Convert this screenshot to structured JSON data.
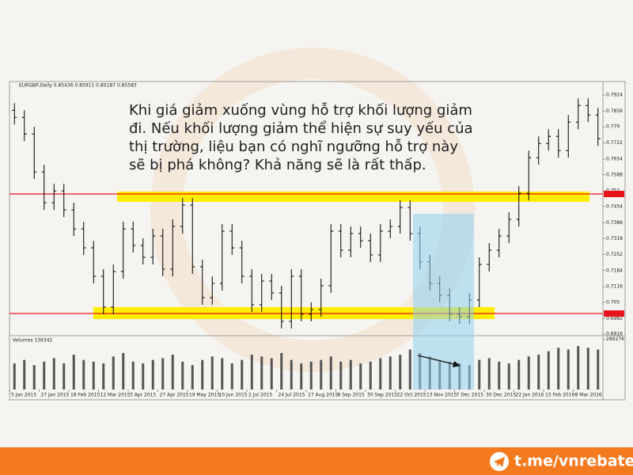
{
  "chart_data": {
    "type": "ohlc",
    "header": "EURGBP,Daily  0.85436 0.85911 0.85187 0.85583",
    "annotation": [
      "Khi giá giảm xuống vùng hỗ trợ khối lượng giảm",
      "đi. Nếu khối lượng giảm thể hiện sự suy yếu của",
      "thị trường, liệu bạn có nghĩ ngưỡng hỗ trợ này",
      "sẽ bị phá không? Khả năng sẽ là rất thấp."
    ],
    "categories": [
      "5 Jan 2015",
      null,
      null,
      "27 Jan 2015",
      null,
      null,
      "18 Feb 2015",
      null,
      null,
      "12 Mar 2015",
      null,
      null,
      "3 Apr 2015",
      null,
      null,
      "27 Apr 2015",
      null,
      null,
      "19 May 2015",
      null,
      null,
      "10 Jun 2015",
      null,
      null,
      "2 Jul 2015",
      null,
      null,
      "24 Jul 2015",
      null,
      null,
      "17 Aug 2015",
      null,
      null,
      "8 Sep 2015",
      null,
      null,
      "30 Sep 2015",
      null,
      null,
      "22 Oct 2015",
      null,
      null,
      "13 Nov 2015",
      null,
      null,
      "7 Dec 2015",
      null,
      null,
      "30 Dec 2015",
      null,
      null,
      "22 Jan 2016",
      null,
      null,
      "15 Feb 2016",
      null,
      null,
      "8 Mar 2016",
      null,
      null
    ],
    "open": [
      0.786,
      0.783,
      0.776,
      0.76,
      0.747,
      0.752,
      0.744,
      0.736,
      0.728,
      0.716,
      0.703,
      0.718,
      0.736,
      0.729,
      0.724,
      0.733,
      0.719,
      0.737,
      0.746,
      0.72,
      0.707,
      0.713,
      0.735,
      0.728,
      0.716,
      0.704,
      0.714,
      0.709,
      0.697,
      0.716,
      0.7,
      0.702,
      0.712,
      0.735,
      0.727,
      0.734,
      0.731,
      0.725,
      0.735,
      0.737,
      0.745,
      0.734,
      0.722,
      0.713,
      0.708,
      0.7,
      0.699,
      0.706,
      0.721,
      0.727,
      0.733,
      0.74,
      0.751,
      0.766,
      0.772,
      0.775,
      0.769,
      0.781,
      0.788,
      0.784
    ],
    "high": [
      0.789,
      0.786,
      0.779,
      0.763,
      0.755,
      0.755,
      0.747,
      0.739,
      0.731,
      0.719,
      0.721,
      0.739,
      0.739,
      0.732,
      0.736,
      0.736,
      0.74,
      0.749,
      0.749,
      0.723,
      0.716,
      0.738,
      0.738,
      0.731,
      0.719,
      0.717,
      0.717,
      0.712,
      0.719,
      0.719,
      0.705,
      0.715,
      0.738,
      0.738,
      0.737,
      0.737,
      0.734,
      0.738,
      0.74,
      0.748,
      0.748,
      0.737,
      0.725,
      0.716,
      0.711,
      0.703,
      0.709,
      0.724,
      0.73,
      0.736,
      0.743,
      0.754,
      0.769,
      0.775,
      0.778,
      0.778,
      0.784,
      0.791,
      0.791,
      0.787
    ],
    "low": [
      0.78,
      0.773,
      0.757,
      0.744,
      0.744,
      0.741,
      0.733,
      0.725,
      0.713,
      0.7,
      0.7,
      0.715,
      0.726,
      0.721,
      0.721,
      0.716,
      0.716,
      0.734,
      0.717,
      0.704,
      0.704,
      0.71,
      0.725,
      0.713,
      0.701,
      0.701,
      0.706,
      0.694,
      0.694,
      0.697,
      0.697,
      0.699,
      0.709,
      0.724,
      0.724,
      0.728,
      0.722,
      0.722,
      0.732,
      0.734,
      0.731,
      0.719,
      0.71,
      0.705,
      0.697,
      0.696,
      0.696,
      0.703,
      0.718,
      0.724,
      0.73,
      0.737,
      0.748,
      0.763,
      0.769,
      0.766,
      0.766,
      0.778,
      0.781,
      0.771
    ],
    "close": [
      0.783,
      0.776,
      0.76,
      0.747,
      0.752,
      0.744,
      0.736,
      0.728,
      0.716,
      0.703,
      0.718,
      0.736,
      0.729,
      0.724,
      0.733,
      0.719,
      0.737,
      0.746,
      0.72,
      0.707,
      0.713,
      0.735,
      0.728,
      0.716,
      0.704,
      0.714,
      0.709,
      0.697,
      0.716,
      0.7,
      0.702,
      0.712,
      0.735,
      0.727,
      0.734,
      0.731,
      0.725,
      0.735,
      0.737,
      0.745,
      0.734,
      0.722,
      0.713,
      0.708,
      0.7,
      0.699,
      0.706,
      0.721,
      0.727,
      0.733,
      0.74,
      0.751,
      0.766,
      0.772,
      0.775,
      0.769,
      0.781,
      0.788,
      0.784,
      0.774
    ],
    "color": "#000000",
    "ylim": [
      0.6913,
      0.7981
    ],
    "yticks": [
      0.7924,
      0.7856,
      0.779,
      0.7722,
      0.7654,
      0.7588,
      0.752,
      0.7454,
      0.7386,
      0.7318,
      0.7252,
      0.7184,
      0.7116,
      0.705,
      0.6982,
      0.6916
    ],
    "levels": [
      0.7507,
      0.7003
    ],
    "level_color": "#e8141b",
    "volume": {
      "name": "Volumes 136342",
      "axis": "y2",
      "color": "#555555",
      "values": [
        150000,
        170000,
        140000,
        160000,
        180000,
        150000,
        200000,
        170000,
        160000,
        150000,
        190000,
        210000,
        160000,
        150000,
        170000,
        180000,
        200000,
        160000,
        140000,
        170000,
        190000,
        180000,
        150000,
        170000,
        200000,
        190000,
        180000,
        210000,
        170000,
        150000,
        160000,
        170000,
        190000,
        160000,
        170000,
        150000,
        160000,
        180000,
        190000,
        200000,
        230000,
        210000,
        190000,
        170000,
        160000,
        150000,
        140000,
        170000,
        180000,
        160000,
        150000,
        170000,
        190000,
        200000,
        220000,
        240000,
        230000,
        250000,
        240000,
        230000
      ]
    },
    "y2lim": [
      0,
      305000
    ],
    "y2ticks": [
      289276
    ]
  },
  "footer": {
    "link": "t.me/vnrebates"
  }
}
